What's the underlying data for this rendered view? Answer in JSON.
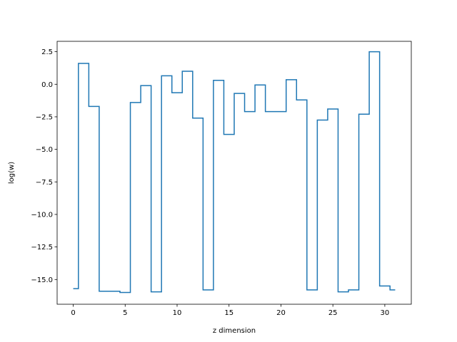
{
  "chart_data": {
    "type": "line",
    "step": "mid",
    "xlabel": "z dimension",
    "ylabel": "log(w)",
    "xlim": [
      -1.55,
      32.55
    ],
    "ylim": [
      -16.9,
      3.3
    ],
    "xticks": [
      0,
      5,
      10,
      15,
      20,
      25,
      30
    ],
    "xtick_labels": [
      "0",
      "5",
      "10",
      "15",
      "20",
      "25",
      "30"
    ],
    "yticks": [
      2.5,
      0.0,
      -2.5,
      -5.0,
      -7.5,
      -10.0,
      -12.5,
      -15.0
    ],
    "ytick_labels": [
      "2.5",
      "0.0",
      "−2.5",
      "−5.0",
      "−7.5",
      "−10.0",
      "−12.5",
      "−15.0"
    ],
    "series": [
      {
        "color": "#1f77b4",
        "x": [
          0,
          1,
          2,
          3,
          4,
          5,
          6,
          7,
          8,
          9,
          10,
          11,
          12,
          13,
          14,
          15,
          16,
          17,
          18,
          19,
          20,
          21,
          22,
          23,
          24,
          25,
          26,
          27,
          28,
          29,
          30,
          31
        ],
        "values": [
          -15.7,
          1.6,
          -1.7,
          -15.9,
          -15.9,
          -16.0,
          -1.4,
          -0.1,
          -15.95,
          0.65,
          -0.65,
          1.0,
          -2.6,
          -15.8,
          0.3,
          -3.85,
          -0.7,
          -2.1,
          -0.05,
          -2.1,
          -2.1,
          0.35,
          -1.2,
          -15.8,
          -2.75,
          -1.9,
          -15.95,
          -15.8,
          -2.3,
          2.5,
          -15.5,
          -15.8
        ]
      }
    ],
    "grid": false
  }
}
